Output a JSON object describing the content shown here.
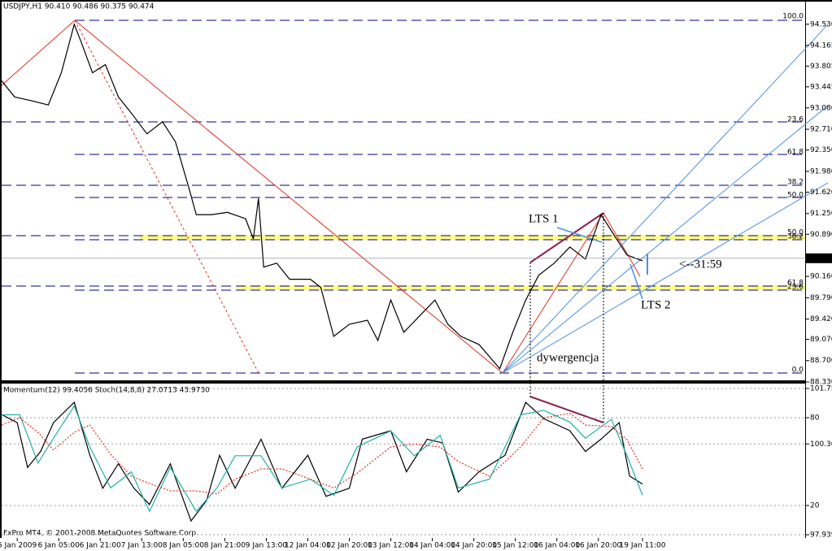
{
  "footer": "FxPro MT4, © 2001-2008 MetaQuotes Software Corp.",
  "chart_data": [
    {
      "type": "line",
      "title": "USDJPY,H1  90.410 90.486 90.375 90.474",
      "color": "#000000",
      "x": [
        0,
        5,
        12,
        18,
        23,
        28,
        31,
        35,
        40,
        45,
        50,
        56,
        62,
        67,
        72,
        75,
        81,
        87,
        94,
        97,
        99,
        101,
        106,
        111,
        119,
        123,
        128,
        134,
        141,
        145,
        150,
        155,
        161,
        167,
        172,
        177,
        184,
        192,
        197,
        202,
        207,
        213,
        219,
        225,
        231,
        236,
        241,
        247
      ],
      "values": [
        93.55,
        93.27,
        93.2,
        93.13,
        93.69,
        94.53,
        94.18,
        93.69,
        93.83,
        93.27,
        92.99,
        92.63,
        92.84,
        92.49,
        91.72,
        91.23,
        91.23,
        91.27,
        91.16,
        90.81,
        91.51,
        90.32,
        90.39,
        90.11,
        90.11,
        89.97,
        89.12,
        89.33,
        89.4,
        89.05,
        89.75,
        89.19,
        89.47,
        89.75,
        89.33,
        89.12,
        88.98,
        88.56,
        89.19,
        89.75,
        90.18,
        90.39,
        90.67,
        90.46,
        91.23,
        90.88,
        90.53,
        90.43
      ],
      "xlim": [
        0,
        310
      ],
      "xticks": [
        {
          "value": 6,
          "label": "5 Jan 2009"
        },
        {
          "value": 22,
          "label": "6 Jan 05:00"
        },
        {
          "value": 38,
          "label": "6 Jan 21:00"
        },
        {
          "value": 54,
          "label": "7 Jan 13:00"
        },
        {
          "value": 70,
          "label": "8 Jan 05:00"
        },
        {
          "value": 86,
          "label": "8 Jan 21:00"
        },
        {
          "value": 102,
          "label": "9 Jan 13:00"
        },
        {
          "value": 118,
          "label": "12 Jan 04:00"
        },
        {
          "value": 134,
          "label": "12 Jan 20:00"
        },
        {
          "value": 150,
          "label": "13 Jan 12:00"
        },
        {
          "value": 166,
          "label": "14 Jan 04:00"
        },
        {
          "value": 182,
          "label": "14 Jan 20:00"
        },
        {
          "value": 198,
          "label": "15 Jan 12:00"
        },
        {
          "value": 214,
          "label": "16 Jan 04:00"
        },
        {
          "value": 230,
          "label": "16 Jan 20:00"
        },
        {
          "value": 247,
          "label": "19 Jan 11:00"
        }
      ],
      "ylim": [
        88.33,
        94.88
      ],
      "yticks": [
        {
          "value": 94.53,
          "label": "94.530"
        },
        94.165,
        93.805,
        93.445,
        {
          "value": 93.08,
          "label": "93.080"
        },
        {
          "value": 92.71,
          "label": "92.710"
        },
        {
          "value": 92.35,
          "label": "92.350"
        },
        {
          "value": 91.98,
          "label": "91.980"
        },
        {
          "value": 91.62,
          "label": "91.620"
        },
        {
          "value": 91.25,
          "label": "91.250"
        },
        {
          "value": 90.89,
          "label": "90.890"
        },
        {
          "value": 90.16,
          "label": "90.160"
        },
        {
          "value": 89.79,
          "label": "89.790"
        },
        {
          "value": 89.42,
          "label": "89.420"
        },
        {
          "value": 89.07,
          "label": "89.070"
        },
        {
          "value": 88.7,
          "label": "88.700"
        },
        {
          "value": 88.33,
          "label": "88.330"
        }
      ],
      "last_price": 90.474,
      "grid": false,
      "fib_labels": [
        "100.0",
        "23.6",
        "61.8",
        "38.2",
        "50.0",
        "50.0",
        "38.2",
        "61.8",
        "23.6",
        "0.0"
      ],
      "annotations": [
        "LTS 1",
        "LTS 2",
        "dywergencja",
        "<--31:59"
      ]
    },
    {
      "type": "line",
      "title": "Momentum(12) 99.4056  Stoch(14,8,8) 27.0713 43.9730",
      "xlim": [
        0,
        310
      ],
      "ylim": [
        97.9396,
        101.75
      ],
      "yticks": [
        101.75,
        100.3046,
        97.9396
      ],
      "y2lim": [
        0,
        100
      ],
      "y2ticks": [
        20,
        80
      ],
      "grid": true,
      "series": [
        {
          "color": "#000000",
          "x": [
            0,
            6,
            10,
            15,
            20,
            28,
            34,
            39,
            45,
            51,
            57,
            65,
            73,
            79,
            84,
            90,
            100,
            108,
            118,
            125,
            134,
            139,
            150,
            156,
            164,
            170,
            176,
            184,
            194,
            202,
            209,
            219,
            225,
            231,
            238,
            242,
            247
          ],
          "values": [
            101.07,
            100.86,
            99.69,
            100.11,
            100.86,
            101.39,
            100.01,
            99.15,
            99.79,
            99.15,
            98.73,
            99.79,
            98.3,
            98.83,
            100.01,
            99.15,
            100.43,
            99.15,
            100.01,
            98.94,
            99.15,
            100.43,
            100.65,
            99.58,
            100.43,
            100.33,
            99.05,
            99.58,
            100.01,
            101.39,
            100.96,
            100.65,
            100.11,
            100.43,
            100.86,
            99.47,
            99.26
          ]
        },
        {
          "color": "#20b2aa",
          "axis": "y2",
          "x": [
            0,
            7,
            14,
            20,
            28,
            34,
            42,
            50,
            57,
            65,
            75,
            83,
            90,
            100,
            108,
            119,
            128,
            137,
            150,
            159,
            169,
            176,
            188,
            200,
            209,
            219,
            225,
            235,
            241,
            247
          ],
          "values": [
            82,
            82,
            49,
            66,
            88,
            60,
            32,
            43,
            16,
            46,
            16,
            32,
            54,
            54,
            32,
            38,
            27,
            60,
            71,
            54,
            68,
            32,
            38,
            82,
            85,
            77,
            66,
            79,
            54,
            27
          ]
        },
        {
          "color": "#e03020",
          "axis": "y2",
          "dash": "2,2",
          "x": [
            0,
            7,
            14,
            20,
            28,
            34,
            42,
            50,
            57,
            65,
            75,
            83,
            90,
            100,
            108,
            119,
            128,
            137,
            150,
            159,
            169,
            176,
            188,
            200,
            209,
            219,
            225,
            235,
            241,
            247
          ],
          "values": [
            75,
            80,
            70,
            58,
            70,
            75,
            55,
            40,
            35,
            30,
            30,
            28,
            38,
            45,
            45,
            38,
            32,
            42,
            60,
            62,
            60,
            50,
            40,
            60,
            80,
            83,
            75,
            74,
            65,
            45
          ]
        }
      ]
    }
  ]
}
